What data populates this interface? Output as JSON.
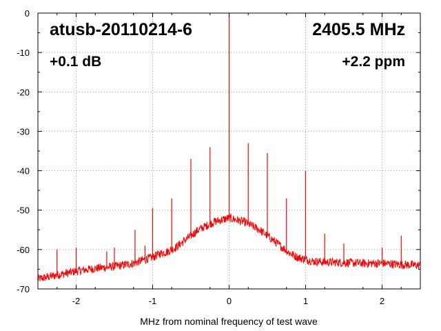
{
  "chart_data": {
    "type": "line",
    "title": "atusb-20110214-6",
    "frequency_label": "2405.5 MHz",
    "gain_label": "+0.1 dB",
    "ppm_label": "+2.2 ppm",
    "xlabel": "MHz from nominal frequency of test wave",
    "ylabel": "",
    "xlim": [
      -2.5,
      2.5
    ],
    "ylim": [
      -70,
      0
    ],
    "x_ticks": [
      -2,
      -1,
      0,
      1,
      2
    ],
    "y_ticks": [
      0,
      -10,
      -20,
      -30,
      -40,
      -50,
      -60,
      -70
    ],
    "grid": true,
    "line_color": "#ff0000",
    "series": [
      {
        "values": [
          [
            -2.5,
            -67.5
          ],
          [
            -2.25,
            -66.5
          ],
          [
            -2.0,
            -65.5
          ],
          [
            -1.75,
            -64.8
          ],
          [
            -1.5,
            -64.3
          ],
          [
            -1.25,
            -63.5
          ],
          [
            -1.1,
            -62.5
          ],
          [
            -1.0,
            -62.0
          ],
          [
            -0.9,
            -61.0
          ],
          [
            -0.8,
            -60.5
          ],
          [
            -0.7,
            -59.5
          ],
          [
            -0.6,
            -58.0
          ],
          [
            -0.5,
            -56.5
          ],
          [
            -0.4,
            -55.0
          ],
          [
            -0.3,
            -54.0
          ],
          [
            -0.2,
            -53.0
          ],
          [
            -0.1,
            -52.5
          ],
          [
            0.0,
            -52.0
          ],
          [
            0.1,
            -52.5
          ],
          [
            0.2,
            -53.0
          ],
          [
            0.3,
            -54.0
          ],
          [
            0.4,
            -55.0
          ],
          [
            0.5,
            -56.5
          ],
          [
            0.6,
            -58.0
          ],
          [
            0.7,
            -59.5
          ],
          [
            0.8,
            -61.0
          ],
          [
            0.9,
            -62.0
          ],
          [
            1.0,
            -62.5
          ],
          [
            1.1,
            -63.0
          ],
          [
            1.25,
            -63.2
          ],
          [
            1.5,
            -63.3
          ],
          [
            1.75,
            -63.5
          ],
          [
            2.0,
            -63.5
          ],
          [
            2.25,
            -63.8
          ],
          [
            2.5,
            -64.0
          ]
        ]
      }
    ],
    "spurs": [
      {
        "x": -2.25,
        "y": -60
      },
      {
        "x": -2.0,
        "y": -59.5
      },
      {
        "x": -1.6,
        "y": -60.5
      },
      {
        "x": -1.5,
        "y": -59.5
      },
      {
        "x": -1.23,
        "y": -55
      },
      {
        "x": -1.1,
        "y": -59
      },
      {
        "x": -1.0,
        "y": -49.5
      },
      {
        "x": -0.75,
        "y": -47
      },
      {
        "x": -0.5,
        "y": -37
      },
      {
        "x": -0.25,
        "y": -34
      },
      {
        "x": 0.0,
        "y": 0
      },
      {
        "x": 0.25,
        "y": -33
      },
      {
        "x": 0.5,
        "y": -35.5
      },
      {
        "x": 0.75,
        "y": -47
      },
      {
        "x": 1.0,
        "y": -40
      },
      {
        "x": 1.25,
        "y": -56
      },
      {
        "x": 1.5,
        "y": -58.5
      },
      {
        "x": 2.0,
        "y": -59.5
      },
      {
        "x": 2.25,
        "y": -56.5
      }
    ]
  }
}
